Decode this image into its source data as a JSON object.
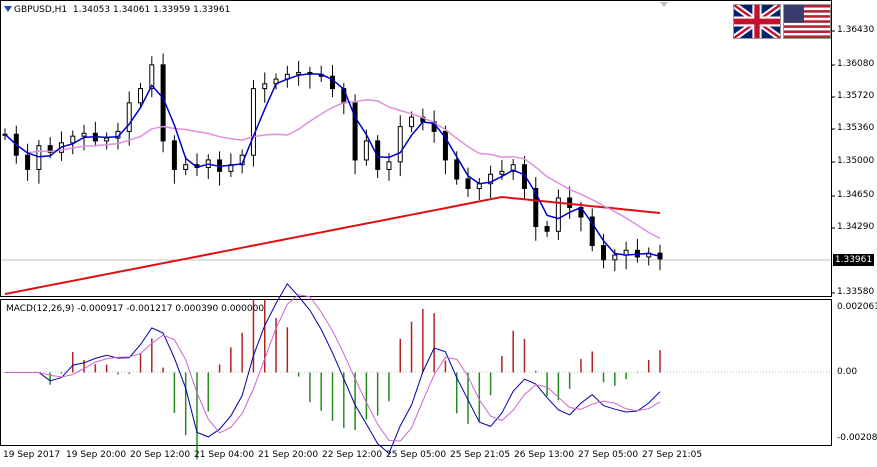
{
  "header": {
    "symbol": "GBPUSD,H1",
    "ohlc": "1.34053 1.34061 1.33959 1.33961"
  },
  "macd_header": {
    "text": "MACD(12,26,9) -0.000917 -0.001217 0.000390 0.000000"
  },
  "price_axis": {
    "ticks": [
      "1.36430",
      "1.36080",
      "1.35720",
      "1.35360",
      "1.35000",
      "1.34650",
      "1.34290",
      "1.33580"
    ],
    "current_price": "1.33961"
  },
  "macd_axis": {
    "ticks": [
      "0.002061",
      "0.00",
      "-0.002087"
    ]
  },
  "time_axis": {
    "ticks": [
      "19 Sep 2017",
      "19 Sep 20:00",
      "20 Sep 12:00",
      "21 Sep 04:00",
      "21 Sep 20:00",
      "22 Sep 12:00",
      "25 Sep 05:00",
      "25 Sep 21:05",
      "26 Sep 13:00",
      "27 Sep 05:00",
      "27 Sep 21:05"
    ]
  },
  "flags": [
    "uk-flag-icon",
    "us-flag-icon"
  ],
  "colors": {
    "fast_ma": "#0000cc",
    "mid_ma": "#e090e0",
    "slow_ma": "#dd1111",
    "macd_pos": "#b22222",
    "macd_neg": "#228b22",
    "macd_line": "#0000aa",
    "signal_line": "#cc66cc"
  },
  "chart_data": {
    "type": "candlestick",
    "price_range": [
      1.3358,
      1.3665
    ],
    "macd_range": [
      -0.0021,
      0.0021
    ],
    "series": [
      {
        "name": "price_close",
        "values": [
          1.3527,
          1.3505,
          1.349,
          1.3515,
          1.3508,
          1.3518,
          1.3525,
          1.3528,
          1.352,
          1.3523,
          1.353,
          1.356,
          1.3575,
          1.36,
          1.352,
          1.349,
          1.3495,
          1.3492,
          1.35,
          1.3488,
          1.3495,
          1.3505,
          1.3575,
          1.358,
          1.3585,
          1.359,
          1.3592,
          1.359,
          1.3588,
          1.3575,
          1.356,
          1.35,
          1.352,
          1.349,
          1.3498,
          1.3535,
          1.3545,
          1.354,
          1.353,
          1.35,
          1.348,
          1.347,
          1.3475,
          1.3485,
          1.3488,
          1.3495,
          1.347,
          1.343,
          1.3425,
          1.346,
          1.345,
          1.344,
          1.341,
          1.3395,
          1.34,
          1.3405,
          1.3398,
          1.3402,
          1.3396
        ]
      }
    ]
  }
}
